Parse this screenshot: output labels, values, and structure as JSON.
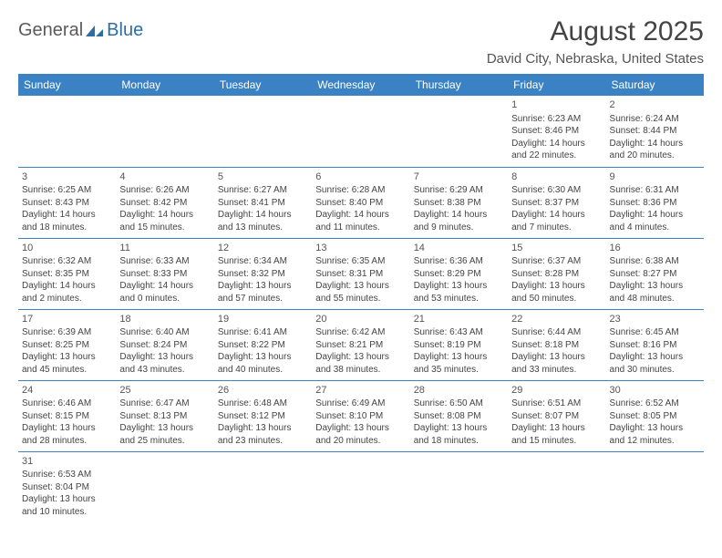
{
  "logo": {
    "text1": "General",
    "text2": "Blue",
    "icon_color": "#2e6da4"
  },
  "title": "August 2025",
  "location": "David City, Nebraska, United States",
  "header_bg": "#3b82c4",
  "header_fg": "#ffffff",
  "border_color": "#3b82c4",
  "weekdays": [
    "Sunday",
    "Monday",
    "Tuesday",
    "Wednesday",
    "Thursday",
    "Friday",
    "Saturday"
  ],
  "weeks": [
    [
      null,
      null,
      null,
      null,
      null,
      {
        "d": "1",
        "sr": "Sunrise: 6:23 AM",
        "ss": "Sunset: 8:46 PM",
        "dl": "Daylight: 14 hours and 22 minutes."
      },
      {
        "d": "2",
        "sr": "Sunrise: 6:24 AM",
        "ss": "Sunset: 8:44 PM",
        "dl": "Daylight: 14 hours and 20 minutes."
      }
    ],
    [
      {
        "d": "3",
        "sr": "Sunrise: 6:25 AM",
        "ss": "Sunset: 8:43 PM",
        "dl": "Daylight: 14 hours and 18 minutes."
      },
      {
        "d": "4",
        "sr": "Sunrise: 6:26 AM",
        "ss": "Sunset: 8:42 PM",
        "dl": "Daylight: 14 hours and 15 minutes."
      },
      {
        "d": "5",
        "sr": "Sunrise: 6:27 AM",
        "ss": "Sunset: 8:41 PM",
        "dl": "Daylight: 14 hours and 13 minutes."
      },
      {
        "d": "6",
        "sr": "Sunrise: 6:28 AM",
        "ss": "Sunset: 8:40 PM",
        "dl": "Daylight: 14 hours and 11 minutes."
      },
      {
        "d": "7",
        "sr": "Sunrise: 6:29 AM",
        "ss": "Sunset: 8:38 PM",
        "dl": "Daylight: 14 hours and 9 minutes."
      },
      {
        "d": "8",
        "sr": "Sunrise: 6:30 AM",
        "ss": "Sunset: 8:37 PM",
        "dl": "Daylight: 14 hours and 7 minutes."
      },
      {
        "d": "9",
        "sr": "Sunrise: 6:31 AM",
        "ss": "Sunset: 8:36 PM",
        "dl": "Daylight: 14 hours and 4 minutes."
      }
    ],
    [
      {
        "d": "10",
        "sr": "Sunrise: 6:32 AM",
        "ss": "Sunset: 8:35 PM",
        "dl": "Daylight: 14 hours and 2 minutes."
      },
      {
        "d": "11",
        "sr": "Sunrise: 6:33 AM",
        "ss": "Sunset: 8:33 PM",
        "dl": "Daylight: 14 hours and 0 minutes."
      },
      {
        "d": "12",
        "sr": "Sunrise: 6:34 AM",
        "ss": "Sunset: 8:32 PM",
        "dl": "Daylight: 13 hours and 57 minutes."
      },
      {
        "d": "13",
        "sr": "Sunrise: 6:35 AM",
        "ss": "Sunset: 8:31 PM",
        "dl": "Daylight: 13 hours and 55 minutes."
      },
      {
        "d": "14",
        "sr": "Sunrise: 6:36 AM",
        "ss": "Sunset: 8:29 PM",
        "dl": "Daylight: 13 hours and 53 minutes."
      },
      {
        "d": "15",
        "sr": "Sunrise: 6:37 AM",
        "ss": "Sunset: 8:28 PM",
        "dl": "Daylight: 13 hours and 50 minutes."
      },
      {
        "d": "16",
        "sr": "Sunrise: 6:38 AM",
        "ss": "Sunset: 8:27 PM",
        "dl": "Daylight: 13 hours and 48 minutes."
      }
    ],
    [
      {
        "d": "17",
        "sr": "Sunrise: 6:39 AM",
        "ss": "Sunset: 8:25 PM",
        "dl": "Daylight: 13 hours and 45 minutes."
      },
      {
        "d": "18",
        "sr": "Sunrise: 6:40 AM",
        "ss": "Sunset: 8:24 PM",
        "dl": "Daylight: 13 hours and 43 minutes."
      },
      {
        "d": "19",
        "sr": "Sunrise: 6:41 AM",
        "ss": "Sunset: 8:22 PM",
        "dl": "Daylight: 13 hours and 40 minutes."
      },
      {
        "d": "20",
        "sr": "Sunrise: 6:42 AM",
        "ss": "Sunset: 8:21 PM",
        "dl": "Daylight: 13 hours and 38 minutes."
      },
      {
        "d": "21",
        "sr": "Sunrise: 6:43 AM",
        "ss": "Sunset: 8:19 PM",
        "dl": "Daylight: 13 hours and 35 minutes."
      },
      {
        "d": "22",
        "sr": "Sunrise: 6:44 AM",
        "ss": "Sunset: 8:18 PM",
        "dl": "Daylight: 13 hours and 33 minutes."
      },
      {
        "d": "23",
        "sr": "Sunrise: 6:45 AM",
        "ss": "Sunset: 8:16 PM",
        "dl": "Daylight: 13 hours and 30 minutes."
      }
    ],
    [
      {
        "d": "24",
        "sr": "Sunrise: 6:46 AM",
        "ss": "Sunset: 8:15 PM",
        "dl": "Daylight: 13 hours and 28 minutes."
      },
      {
        "d": "25",
        "sr": "Sunrise: 6:47 AM",
        "ss": "Sunset: 8:13 PM",
        "dl": "Daylight: 13 hours and 25 minutes."
      },
      {
        "d": "26",
        "sr": "Sunrise: 6:48 AM",
        "ss": "Sunset: 8:12 PM",
        "dl": "Daylight: 13 hours and 23 minutes."
      },
      {
        "d": "27",
        "sr": "Sunrise: 6:49 AM",
        "ss": "Sunset: 8:10 PM",
        "dl": "Daylight: 13 hours and 20 minutes."
      },
      {
        "d": "28",
        "sr": "Sunrise: 6:50 AM",
        "ss": "Sunset: 8:08 PM",
        "dl": "Daylight: 13 hours and 18 minutes."
      },
      {
        "d": "29",
        "sr": "Sunrise: 6:51 AM",
        "ss": "Sunset: 8:07 PM",
        "dl": "Daylight: 13 hours and 15 minutes."
      },
      {
        "d": "30",
        "sr": "Sunrise: 6:52 AM",
        "ss": "Sunset: 8:05 PM",
        "dl": "Daylight: 13 hours and 12 minutes."
      }
    ],
    [
      {
        "d": "31",
        "sr": "Sunrise: 6:53 AM",
        "ss": "Sunset: 8:04 PM",
        "dl": "Daylight: 13 hours and 10 minutes."
      },
      null,
      null,
      null,
      null,
      null,
      null
    ]
  ]
}
